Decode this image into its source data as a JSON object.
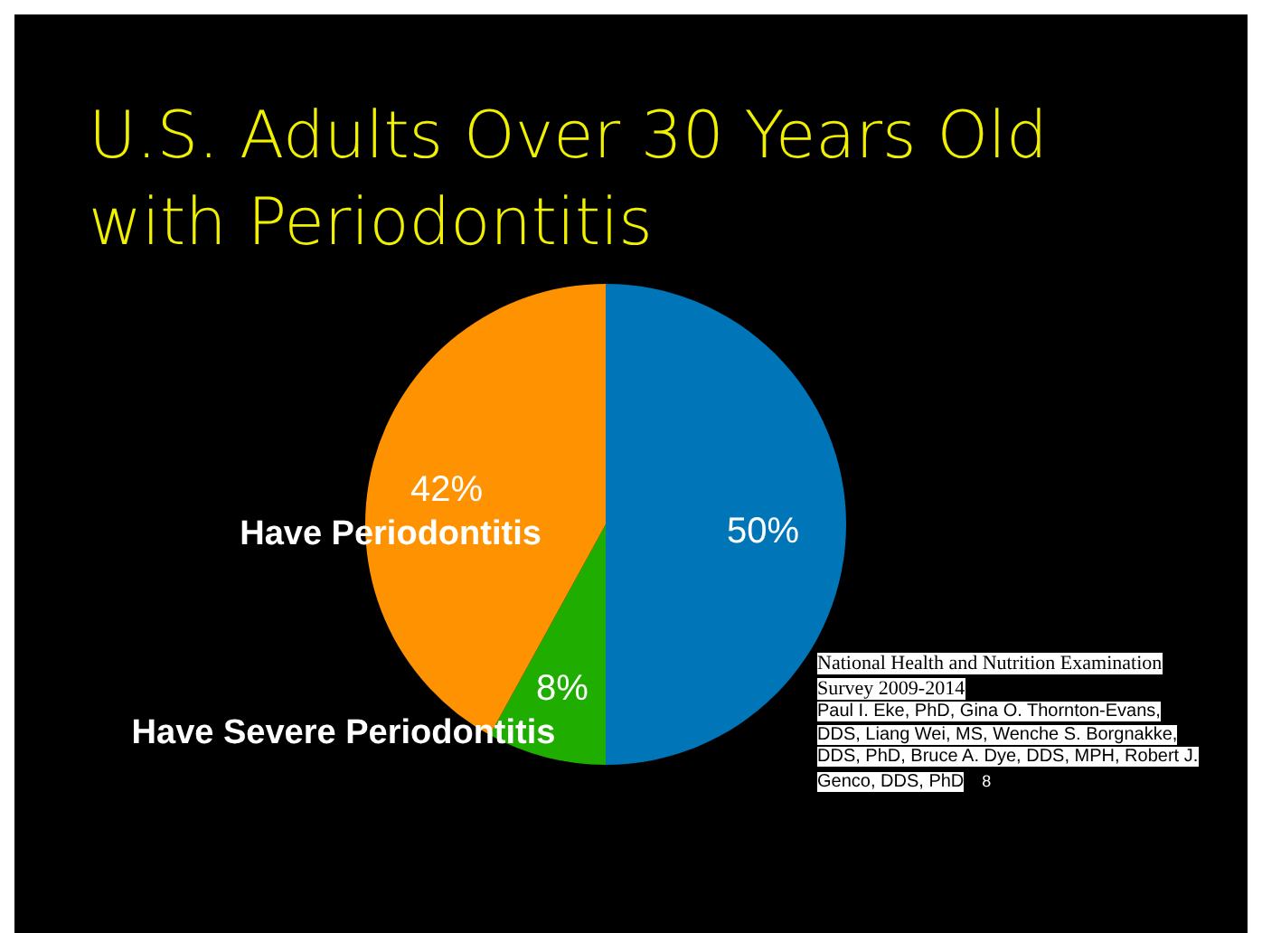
{
  "chart_data": {
    "type": "pie",
    "title": "U.S. Adults Over 30 Years Old with Periodontitis",
    "categories": [
      null,
      "Have Severe Periodontitis",
      "Have Periodontitis"
    ],
    "values": [
      50,
      8,
      42
    ],
    "colors": [
      "#0075b8",
      "#1fae00",
      "#ff9200"
    ],
    "value_labels": [
      "50%",
      "8%",
      "42%"
    ],
    "legend": false,
    "annotations": [
      "National Health and Nutrition Examination Survey 2009-2014",
      "Paul I. Eke, PhD, Gina O. Thornton-Evans, DDS, Liang Wei, MS, Wenche S. Borgnakke, DDS, PhD, Bruce A. Dye, DDS, MPH, Robert J. Genco, DDS, PhD",
      "8"
    ]
  }
}
